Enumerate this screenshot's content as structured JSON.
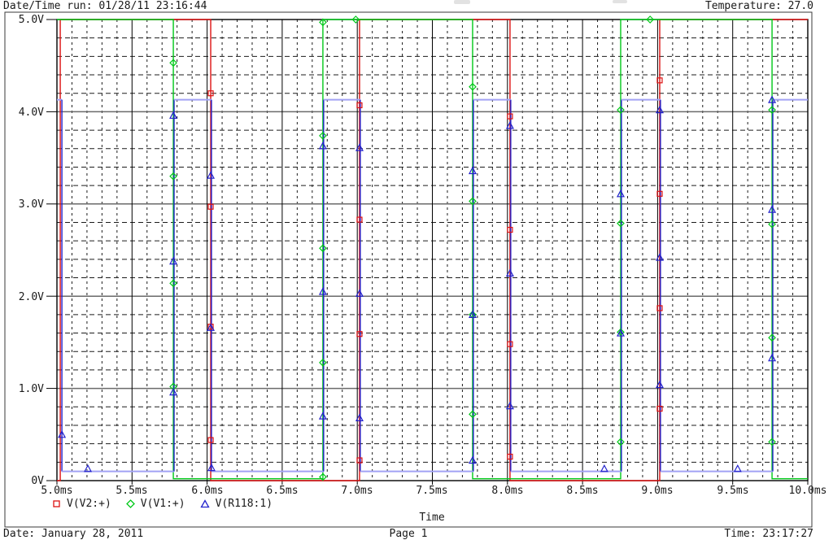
{
  "header": {
    "datetime_run": "Date/Time run: 01/28/11 23:16:44",
    "temperature": "Temperature: 27.0"
  },
  "footer": {
    "date": "Date: January 28, 2011",
    "page": "Page 1",
    "time": "Time: 23:17:27"
  },
  "chart_data": {
    "type": "line",
    "subtype": "digital-step-waveforms",
    "xlabel": "Time",
    "x_unit": "ms",
    "y_unit": "V",
    "xlim": [
      5.0,
      10.0
    ],
    "ylim": [
      0,
      5.0
    ],
    "grid": {
      "minor_x_step_ms": 0.1,
      "major_x_step_ms": 0.5,
      "minor_y_step_V": 0.2,
      "major_y_step_V": 1.0,
      "minor_style": "dashed",
      "major_v_color": "#000000",
      "major_h_color": "#6a6a6a"
    },
    "x_tick_values": [
      5.0,
      5.5,
      6.0,
      6.5,
      7.0,
      7.5,
      8.0,
      8.5,
      9.0,
      9.5,
      10.0
    ],
    "x_tick_labels": [
      "5.0ms",
      "5.5ms",
      "6.0ms",
      "6.5ms",
      "7.0ms",
      "7.5ms",
      "8.0ms",
      "8.5ms",
      "9.0ms",
      "9.5ms",
      "10.0ms"
    ],
    "y_tick_values": [
      0,
      1.0,
      2.0,
      3.0,
      4.0,
      5.0
    ],
    "y_tick_labels": [
      "0V",
      "1.0V",
      "2.0V",
      "3.0V",
      "4.0V",
      "5.0V"
    ],
    "legend_position": "below-left",
    "series": [
      {
        "name": "V(V2:+)",
        "marker": "square",
        "color": "#dd1010",
        "points": [
          [
            5.0,
            0
          ],
          [
            5.022,
            0
          ],
          [
            5.022,
            5
          ],
          [
            6.024,
            5
          ],
          [
            6.024,
            0
          ],
          [
            7.015,
            0
          ],
          [
            7.015,
            5
          ],
          [
            8.017,
            5
          ],
          [
            8.017,
            0
          ],
          [
            9.014,
            0
          ],
          [
            9.014,
            5
          ],
          [
            10.0,
            5
          ]
        ],
        "marker_points": [
          [
            6.024,
            4.2
          ],
          [
            6.024,
            2.97
          ],
          [
            6.024,
            1.67
          ],
          [
            6.024,
            0.44
          ],
          [
            7.015,
            4.07
          ],
          [
            7.015,
            2.83
          ],
          [
            7.015,
            1.59
          ],
          [
            7.015,
            0.22
          ],
          [
            8.017,
            3.95
          ],
          [
            8.017,
            2.72
          ],
          [
            8.017,
            1.48
          ],
          [
            8.017,
            0.26
          ],
          [
            9.014,
            4.34
          ],
          [
            9.014,
            3.11
          ],
          [
            9.014,
            1.87
          ],
          [
            9.014,
            0.78
          ]
        ]
      },
      {
        "name": "V(V1:+)",
        "marker": "diamond",
        "color": "#00c818",
        "points": [
          [
            5.0,
            5
          ],
          [
            5.775,
            5
          ],
          [
            5.775,
            0.02
          ],
          [
            6.771,
            0.02
          ],
          [
            6.771,
            5
          ],
          [
            7.768,
            5
          ],
          [
            7.768,
            0.02
          ],
          [
            8.754,
            0.02
          ],
          [
            8.754,
            5
          ],
          [
            9.762,
            5
          ],
          [
            9.762,
            0.02
          ],
          [
            10.0,
            0.02
          ]
        ],
        "marker_points": [
          [
            5.775,
            4.53
          ],
          [
            5.775,
            3.3
          ],
          [
            5.775,
            2.14
          ],
          [
            5.775,
            1.02
          ],
          [
            6.771,
            4.97
          ],
          [
            6.771,
            3.74
          ],
          [
            6.771,
            2.52
          ],
          [
            6.771,
            1.28
          ],
          [
            6.771,
            0.04
          ],
          [
            6.99,
            5.0
          ],
          [
            7.768,
            4.27
          ],
          [
            7.768,
            3.03
          ],
          [
            7.768,
            1.8
          ],
          [
            7.768,
            0.72
          ],
          [
            8.754,
            4.02
          ],
          [
            8.754,
            2.79
          ],
          [
            8.754,
            1.61
          ],
          [
            8.754,
            0.42
          ],
          [
            8.95,
            5.0
          ],
          [
            9.762,
            4.02
          ],
          [
            9.762,
            2.78
          ],
          [
            9.762,
            1.55
          ],
          [
            9.762,
            0.42
          ]
        ]
      },
      {
        "name": "V(R118:1)",
        "marker": "triangle",
        "color": "#2222cc",
        "line_color_light": "#a2a2f4",
        "points": [
          [
            5.0,
            4.13
          ],
          [
            5.033,
            4.13
          ],
          [
            5.033,
            0.1
          ],
          [
            5.78,
            0.1
          ],
          [
            5.78,
            4.13
          ],
          [
            6.029,
            4.13
          ],
          [
            6.029,
            0.1
          ],
          [
            6.776,
            0.1
          ],
          [
            6.776,
            4.13
          ],
          [
            7.02,
            4.13
          ],
          [
            7.02,
            0.1
          ],
          [
            7.773,
            0.1
          ],
          [
            7.773,
            4.13
          ],
          [
            8.022,
            4.13
          ],
          [
            8.022,
            0.1
          ],
          [
            8.759,
            0.1
          ],
          [
            8.759,
            4.13
          ],
          [
            9.019,
            4.13
          ],
          [
            9.019,
            0.1
          ],
          [
            9.767,
            0.1
          ],
          [
            9.767,
            4.13
          ],
          [
            10.0,
            4.13
          ]
        ],
        "marker_points": [
          [
            5.033,
            0.5
          ],
          [
            5.206,
            0.13
          ],
          [
            5.775,
            3.96
          ],
          [
            5.775,
            2.38
          ],
          [
            5.775,
            0.96
          ],
          [
            6.024,
            3.31
          ],
          [
            6.024,
            1.66
          ],
          [
            6.029,
            0.14
          ],
          [
            6.771,
            3.63
          ],
          [
            6.771,
            2.05
          ],
          [
            6.771,
            0.7
          ],
          [
            7.015,
            3.61
          ],
          [
            7.015,
            2.03
          ],
          [
            7.015,
            0.68
          ],
          [
            7.768,
            3.36
          ],
          [
            7.768,
            1.8
          ],
          [
            7.768,
            0.22
          ],
          [
            8.017,
            3.85
          ],
          [
            8.017,
            2.25
          ],
          [
            8.017,
            0.81
          ],
          [
            8.645,
            0.13
          ],
          [
            8.754,
            3.11
          ],
          [
            8.754,
            1.6
          ],
          [
            9.014,
            4.02
          ],
          [
            9.014,
            2.42
          ],
          [
            9.014,
            1.04
          ],
          [
            9.533,
            0.13
          ],
          [
            9.762,
            4.13
          ],
          [
            9.762,
            2.94
          ],
          [
            9.762,
            1.33
          ]
        ]
      }
    ]
  }
}
